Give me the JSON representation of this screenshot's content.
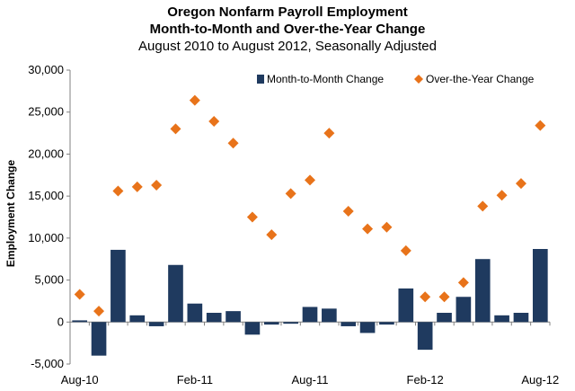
{
  "chart_data": {
    "type": "bar",
    "title": "Oregon Nonfarm Payroll Employment",
    "subtitle": "Month-to-Month and Over-the-Year Change",
    "subtitle2": "August 2010 to August 2012, Seasonally Adjusted",
    "ylabel": "Employment Change",
    "xlabel": "",
    "ylim": [
      -5000,
      30000
    ],
    "yticks": [
      -5000,
      0,
      5000,
      10000,
      15000,
      20000,
      25000,
      30000
    ],
    "ytick_labels": [
      "-5,000",
      "0",
      "5,000",
      "10,000",
      "15,000",
      "20,000",
      "25,000",
      "30,000"
    ],
    "categories": [
      "Aug-10",
      "Sep-10",
      "Oct-10",
      "Nov-10",
      "Dec-10",
      "Jan-11",
      "Feb-11",
      "Mar-11",
      "Apr-11",
      "May-11",
      "Jun-11",
      "Jul-11",
      "Aug-11",
      "Sep-11",
      "Oct-11",
      "Nov-11",
      "Dec-11",
      "Jan-12",
      "Feb-12",
      "Mar-12",
      "Apr-12",
      "May-12",
      "Jun-12",
      "Jul-12",
      "Aug-12"
    ],
    "xtick_labels": [
      {
        "index": 0,
        "label": "Aug-10"
      },
      {
        "index": 6,
        "label": "Feb-11"
      },
      {
        "index": 12,
        "label": "Aug-11"
      },
      {
        "index": 18,
        "label": "Feb-12"
      },
      {
        "index": 24,
        "label": "Aug-12"
      }
    ],
    "legend_position": "top-right",
    "grid": false,
    "series": [
      {
        "name": "Month-to-Month Change",
        "kind": "bar",
        "color": "#1f3a5f",
        "values": [
          200,
          -4000,
          8600,
          800,
          -500,
          6800,
          2200,
          1100,
          1300,
          -1500,
          -300,
          -200,
          1800,
          1600,
          -500,
          -1300,
          -300,
          4000,
          -3300,
          1100,
          3000,
          7500,
          800,
          1100,
          8700
        ]
      },
      {
        "name": "Over-the-Year Change",
        "kind": "scatter",
        "marker": "diamond",
        "color": "#e8731a",
        "values": [
          3300,
          1300,
          15600,
          16100,
          16300,
          23000,
          26400,
          23900,
          21300,
          12500,
          10400,
          15300,
          16900,
          22500,
          13200,
          11100,
          11300,
          8500,
          3000,
          3000,
          4700,
          13800,
          15100,
          16500,
          23400
        ]
      }
    ]
  }
}
